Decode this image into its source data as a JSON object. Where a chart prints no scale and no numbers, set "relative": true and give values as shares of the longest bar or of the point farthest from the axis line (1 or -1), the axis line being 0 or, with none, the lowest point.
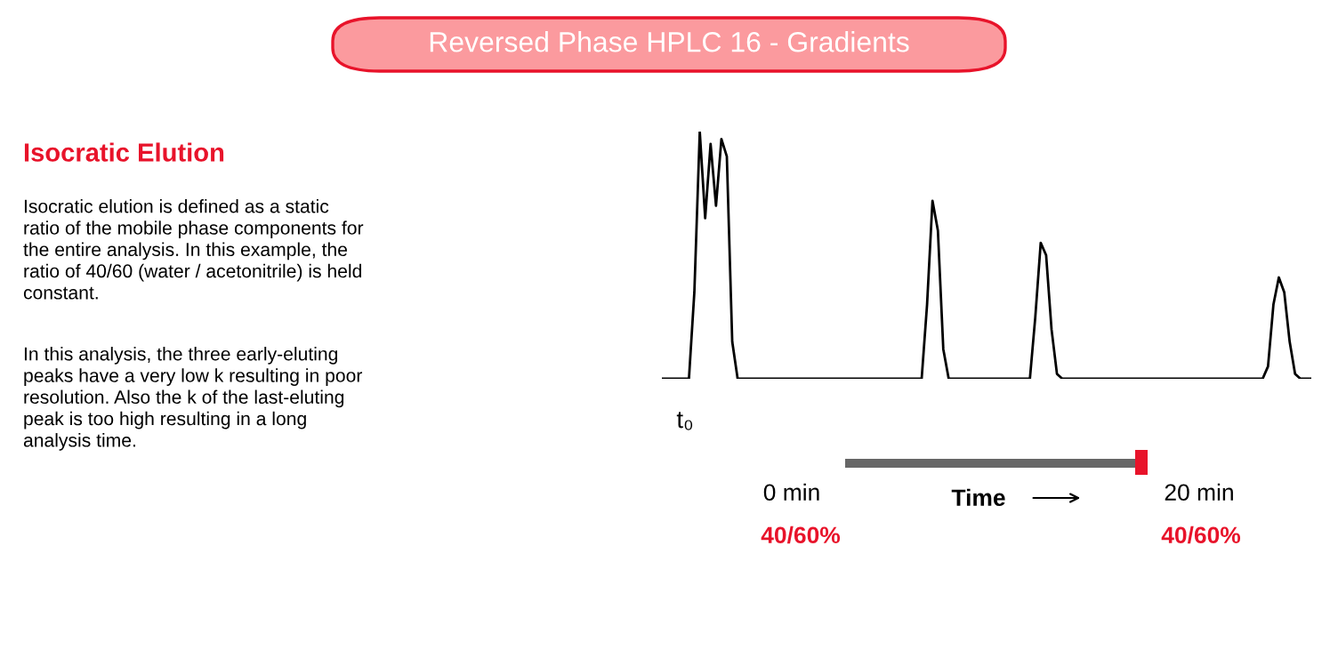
{
  "chart_data": {
    "type": "line",
    "relative": true,
    "title": "Reversed Phase HPLC 16 - Gradients",
    "subtitle": "Isocratic Elution",
    "categories": [
      null,
      null,
      null,
      null,
      null,
      null,
      null,
      null,
      null,
      null,
      null,
      null,
      null,
      null,
      null,
      null,
      null,
      null,
      null,
      null,
      null,
      null,
      null,
      null,
      null,
      null,
      null,
      null,
      null,
      null,
      null,
      null,
      null,
      null,
      null,
      null,
      null,
      null,
      null,
      null,
      null,
      null,
      null,
      null,
      null,
      null,
      null,
      null,
      null,
      null,
      null,
      null,
      null,
      null,
      null,
      null,
      null,
      null,
      null,
      null,
      null,
      null,
      null,
      null,
      null,
      null,
      null,
      null,
      null,
      null,
      null,
      null,
      null,
      null,
      null,
      null,
      null,
      null,
      null,
      null,
      null,
      null,
      null,
      null,
      null,
      null,
      null,
      null,
      null,
      null,
      null,
      null,
      null,
      null,
      null,
      null,
      null,
      null,
      null,
      null,
      null,
      null,
      null,
      null,
      null,
      null,
      null,
      null,
      null,
      null,
      null,
      null,
      null,
      null,
      null,
      null,
      null,
      null,
      null,
      null,
      null
    ],
    "series": [
      {
        "color": "#000000",
        "values": [
          0,
          0,
          0,
          0,
          0,
          0,
          0.35,
          1,
          0.65,
          0.95,
          0.7,
          0.97,
          0.9,
          0.15,
          0,
          0,
          0,
          0,
          0,
          0,
          0,
          0,
          0,
          0,
          0,
          0,
          0,
          0,
          0,
          0,
          0,
          0,
          0,
          0,
          0,
          0,
          0,
          0,
          0,
          0,
          0,
          0,
          0,
          0,
          0,
          0,
          0,
          0,
          0,
          0.3,
          0.72,
          0.6,
          0.12,
          0,
          0,
          0,
          0,
          0,
          0,
          0,
          0,
          0,
          0,
          0,
          0,
          0,
          0,
          0,
          0,
          0.25,
          0.55,
          0.5,
          0.2,
          0.02,
          0,
          0,
          0,
          0,
          0,
          0,
          0,
          0,
          0,
          0,
          0,
          0,
          0,
          0,
          0,
          0,
          0,
          0,
          0,
          0,
          0,
          0,
          0,
          0,
          0,
          0,
          0,
          0,
          0,
          0,
          0,
          0,
          0,
          0,
          0,
          0,
          0,
          0,
          0.05,
          0.3,
          0.41,
          0.35,
          0.15,
          0.02,
          0,
          0,
          0
        ]
      }
    ],
    "annotations": [
      "Isocratic elution is defined as a static\nratio of the mobile phase components for\nthe entire analysis. In this example, the\nratio of 40/60 (water / acetonitrile) is held\nconstant.",
      "In this analysis, the three early-eluting\npeaks have a very low k resulting in poor\nresolution. Also the k of the last-eluting\npeak is too high resulting in a long\nanalysis time.",
      "t₀",
      "0 min",
      "Time",
      "20 min",
      "40/60%",
      "40/60%"
    ],
    "legend": false,
    "grid": false
  }
}
